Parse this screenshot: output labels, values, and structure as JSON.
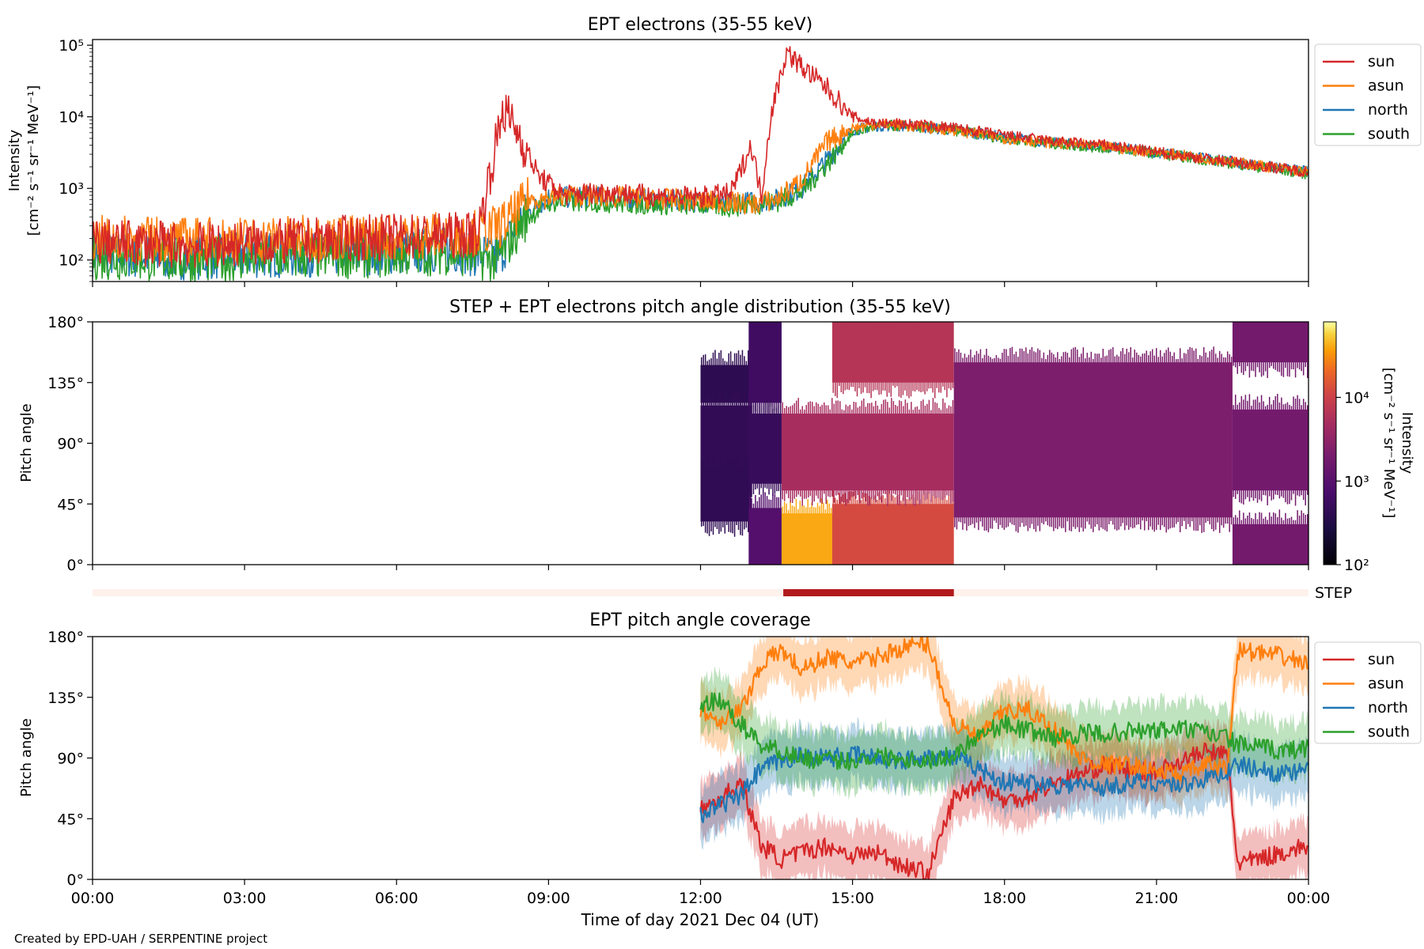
{
  "footer_text": "Created by EPD-UAH / SERPENTINE project",
  "colors": {
    "sun": "#d62728",
    "asun": "#ff7f0e",
    "north": "#1f77b4",
    "south": "#2ca02c",
    "step_bar": "#b2191c",
    "step_bg": "#fff1ec"
  },
  "step_bar": {
    "label": "STEP",
    "active_range": [
      "13:38",
      "17:00"
    ]
  },
  "chart_data": [
    {
      "type": "line",
      "title": "EPT electrons (35-55 keV)",
      "ylabel": [
        "Intensity",
        "[cm⁻² s⁻¹ sr⁻¹ MeV⁻¹]"
      ],
      "yscale": "log",
      "ylim": [
        50,
        120000
      ],
      "yticks": [
        {
          "value": 100,
          "label": "10²"
        },
        {
          "value": 1000,
          "label": "10³"
        },
        {
          "value": 10000,
          "label": "10⁴"
        },
        {
          "value": 100000,
          "label": "10⁵"
        }
      ],
      "xlim_hours": [
        0,
        24
      ],
      "legend": "outside-right",
      "series": [
        {
          "name": "sun",
          "color": "#d62728",
          "x": [
            0,
            1,
            2,
            3,
            4,
            5,
            6,
            7,
            7.6,
            7.9,
            8.1,
            8.4,
            8.8,
            9.3,
            10,
            11,
            12,
            12.6,
            13.0,
            13.2,
            13.4,
            13.7,
            14.0,
            14.5,
            15.0,
            15.5,
            16,
            17,
            18,
            19,
            20,
            21,
            22,
            23,
            24
          ],
          "y": [
            180,
            170,
            160,
            170,
            180,
            200,
            210,
            220,
            230,
            2500,
            13000,
            6000,
            1500,
            800,
            900,
            800,
            750,
            850,
            4000,
            800,
            12000,
            80000,
            50000,
            25000,
            10000,
            8000,
            8000,
            7000,
            5500,
            4500,
            4000,
            3200,
            2600,
            2100,
            1700
          ]
        },
        {
          "name": "asun",
          "color": "#ff7f0e",
          "x": [
            0,
            2,
            4,
            6,
            7,
            7.8,
            8.2,
            8.6,
            9.5,
            10.5,
            11.5,
            12,
            12.5,
            13.0,
            13.5,
            14.0,
            14.5,
            15.0,
            15.5,
            16,
            17,
            18,
            19,
            20,
            21,
            22,
            23,
            24
          ],
          "y": [
            200,
            190,
            200,
            210,
            230,
            250,
            350,
            700,
            800,
            750,
            700,
            650,
            650,
            600,
            700,
            1300,
            4500,
            7000,
            8000,
            7500,
            6500,
            5000,
            4300,
            3800,
            3200,
            2600,
            2100,
            1700
          ]
        },
        {
          "name": "north",
          "color": "#1f77b4",
          "x": [
            0,
            2,
            4,
            6,
            7,
            8,
            8.5,
            9,
            10,
            11,
            12,
            12.5,
            13.0,
            13.5,
            14.0,
            14.5,
            15.0,
            15.5,
            16,
            17,
            18,
            19,
            20,
            21,
            22,
            23,
            24
          ],
          "y": [
            120,
            110,
            120,
            130,
            140,
            110,
            400,
            750,
            750,
            700,
            650,
            600,
            650,
            700,
            1000,
            2500,
            6500,
            7500,
            7500,
            6500,
            5200,
            4300,
            3800,
            3200,
            2600,
            2100,
            1700
          ]
        },
        {
          "name": "south",
          "color": "#2ca02c",
          "x": [
            0,
            2,
            4,
            6,
            7,
            8,
            8.5,
            9,
            10,
            11,
            12,
            12.5,
            13.0,
            13.5,
            14.0,
            14.5,
            15.0,
            15.5,
            16,
            17,
            18,
            19,
            20,
            21,
            22,
            23,
            24
          ],
          "y": [
            110,
            100,
            110,
            120,
            130,
            100,
            350,
            650,
            650,
            600,
            600,
            550,
            600,
            650,
            900,
            2200,
            6000,
            7500,
            7500,
            6500,
            5000,
            4200,
            3700,
            3100,
            2500,
            2000,
            1600
          ]
        }
      ]
    },
    {
      "type": "heatmap",
      "title": "STEP + EPT electrons pitch angle distribution (35-55 keV)",
      "ylabel": "Pitch angle",
      "ylim": [
        0,
        180
      ],
      "yticks": [
        {
          "value": 0,
          "label": "0°"
        },
        {
          "value": 45,
          "label": "45°"
        },
        {
          "value": 90,
          "label": "90°"
        },
        {
          "value": 135,
          "label": "135°"
        },
        {
          "value": 180,
          "label": "180°"
        }
      ],
      "xlim_hours": [
        0,
        24
      ],
      "colorbar": {
        "label": [
          "Intensity",
          "[cm⁻² s⁻¹ sr⁻¹ MeV⁻¹]"
        ],
        "scale": "log",
        "range": [
          100,
          80000
        ],
        "ticks": [
          {
            "value": 100,
            "label": "10²"
          },
          {
            "value": 1000,
            "label": "10³"
          },
          {
            "value": 10000,
            "label": "10⁴"
          }
        ]
      },
      "bands": [
        {
          "x": [
            12.0,
            13.0
          ],
          "y": [
            120,
            148
          ],
          "intensity": 400
        },
        {
          "x": [
            12.0,
            13.0
          ],
          "y": [
            68,
            118
          ],
          "intensity": 450
        },
        {
          "x": [
            12.0,
            13.0
          ],
          "y": [
            32,
            70
          ],
          "intensity": 420
        },
        {
          "x": [
            12.95,
            13.6
          ],
          "y": [
            120,
            180
          ],
          "intensity": 600
        },
        {
          "x": [
            12.95,
            13.6
          ],
          "y": [
            60,
            112
          ],
          "intensity": 500
        },
        {
          "x": [
            12.95,
            13.6
          ],
          "y": [
            0,
            42
          ],
          "intensity": 900
        },
        {
          "x": [
            13.6,
            14.6
          ],
          "y": [
            0,
            38
          ],
          "intensity": 40000
        },
        {
          "x": [
            14.6,
            17.0
          ],
          "y": [
            0,
            45
          ],
          "intensity": 12000
        },
        {
          "x": [
            13.6,
            17.0
          ],
          "y": [
            55,
            112
          ],
          "intensity": 5000
        },
        {
          "x": [
            14.6,
            17.0
          ],
          "y": [
            135,
            180
          ],
          "intensity": 6500
        },
        {
          "x": [
            17.0,
            22.5
          ],
          "y": [
            35,
            150
          ],
          "intensity": 2200
        },
        {
          "x": [
            22.5,
            24.0
          ],
          "y": [
            55,
            115
          ],
          "intensity": 1800
        },
        {
          "x": [
            22.5,
            24.0
          ],
          "y": [
            0,
            30
          ],
          "intensity": 1800
        },
        {
          "x": [
            22.5,
            24.0
          ],
          "y": [
            150,
            180
          ],
          "intensity": 1800
        }
      ]
    },
    {
      "type": "line",
      "title": "EPT pitch angle coverage",
      "ylabel": "Pitch angle",
      "xlabel": "Time of day 2021 Dec 04 (UT)",
      "ylim": [
        0,
        180
      ],
      "yticks": [
        {
          "value": 0,
          "label": "0°"
        },
        {
          "value": 45,
          "label": "45°"
        },
        {
          "value": 90,
          "label": "90°"
        },
        {
          "value": 135,
          "label": "135°"
        },
        {
          "value": 180,
          "label": "180°"
        }
      ],
      "xlim_hours": [
        0,
        24
      ],
      "xticks": [
        {
          "value": 0,
          "label": "00:00"
        },
        {
          "value": 3,
          "label": "03:00"
        },
        {
          "value": 6,
          "label": "06:00"
        },
        {
          "value": 9,
          "label": "09:00"
        },
        {
          "value": 12,
          "label": "12:00"
        },
        {
          "value": 15,
          "label": "15:00"
        },
        {
          "value": 18,
          "label": "18:00"
        },
        {
          "value": 21,
          "label": "21:00"
        },
        {
          "value": 24,
          "label": "00:00"
        }
      ],
      "legend": "outside-right",
      "series": [
        {
          "name": "sun",
          "color": "#d62728",
          "band_halfwidth": 20,
          "x": [
            12.0,
            12.4,
            12.8,
            13.2,
            13.6,
            14.0,
            14.5,
            15.0,
            15.5,
            16.0,
            16.5,
            17.0,
            17.5,
            18.0,
            18.5,
            19.0,
            19.5,
            20.0,
            20.5,
            21.0,
            21.5,
            22.0,
            22.4,
            22.6,
            23.0,
            23.5,
            24.0
          ],
          "y": [
            52,
            60,
            72,
            25,
            15,
            20,
            25,
            18,
            20,
            10,
            5,
            60,
            72,
            58,
            62,
            72,
            78,
            85,
            80,
            80,
            88,
            95,
            92,
            12,
            15,
            20,
            25
          ]
        },
        {
          "name": "asun",
          "color": "#ff7f0e",
          "band_halfwidth": 20,
          "x": [
            12.0,
            12.4,
            12.8,
            13.2,
            13.6,
            14.0,
            14.5,
            15.0,
            15.5,
            16.0,
            16.5,
            17.0,
            17.5,
            18.0,
            18.5,
            19.0,
            19.5,
            20.0,
            20.5,
            21.0,
            21.5,
            22.0,
            22.4,
            22.6,
            23.0,
            23.5,
            24.0
          ],
          "y": [
            125,
            118,
            125,
            160,
            170,
            155,
            165,
            160,
            165,
            172,
            175,
            115,
            105,
            125,
            125,
            110,
            90,
            85,
            85,
            80,
            78,
            85,
            82,
            170,
            168,
            165,
            160
          ]
        },
        {
          "name": "north",
          "color": "#1f77b4",
          "band_halfwidth": 20,
          "x": [
            12.0,
            12.4,
            12.8,
            13.2,
            13.6,
            14.0,
            14.5,
            15.0,
            15.5,
            16.0,
            16.5,
            17.0,
            17.5,
            18.0,
            18.5,
            19.0,
            19.5,
            20.0,
            20.5,
            21.0,
            21.5,
            22.0,
            22.4,
            22.6,
            23.0,
            23.5,
            24.0
          ],
          "y": [
            48,
            55,
            62,
            82,
            88,
            92,
            90,
            92,
            90,
            88,
            92,
            90,
            82,
            72,
            72,
            70,
            70,
            68,
            72,
            72,
            70,
            75,
            80,
            85,
            82,
            78,
            80
          ]
        },
        {
          "name": "south",
          "color": "#2ca02c",
          "band_halfwidth": 20,
          "x": [
            12.0,
            12.4,
            12.8,
            13.2,
            13.6,
            14.0,
            14.5,
            15.0,
            15.5,
            16.0,
            16.5,
            17.0,
            17.5,
            18.0,
            18.5,
            19.0,
            19.5,
            20.0,
            20.5,
            21.0,
            21.5,
            22.0,
            22.4,
            22.6,
            23.0,
            23.5,
            24.0
          ],
          "y": [
            130,
            132,
            115,
            100,
            95,
            90,
            88,
            88,
            92,
            90,
            88,
            92,
            108,
            115,
            110,
            105,
            108,
            108,
            110,
            110,
            112,
            108,
            105,
            100,
            98,
            95,
            98
          ]
        }
      ]
    }
  ]
}
